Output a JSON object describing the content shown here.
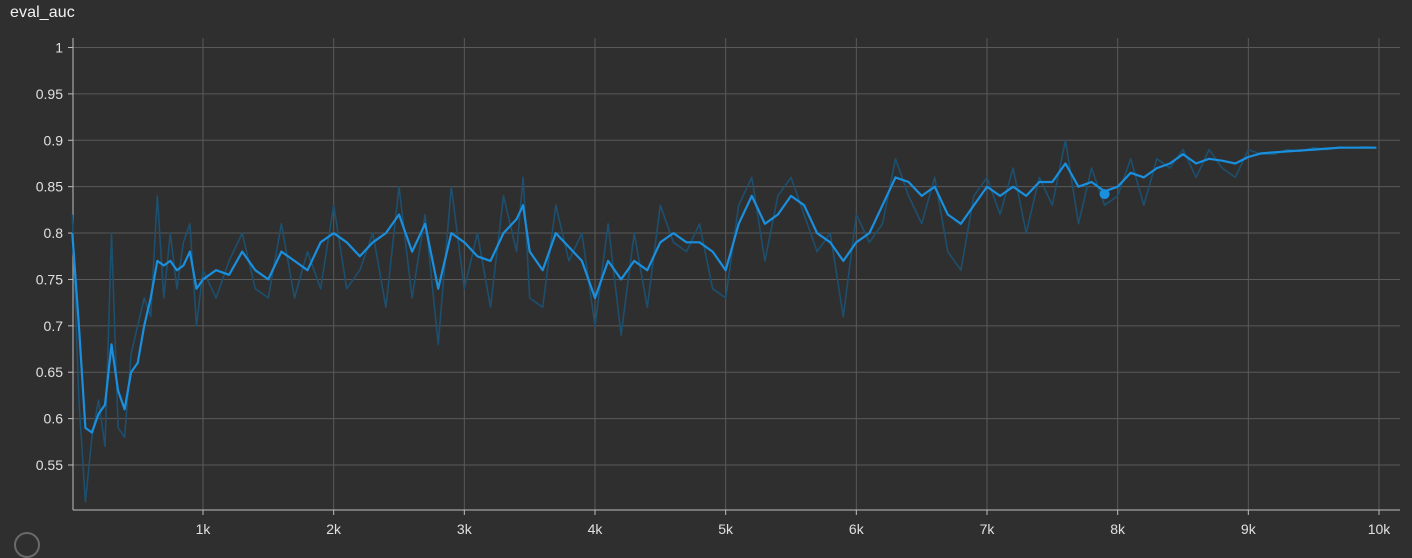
{
  "colors": {
    "background": "#2f2f2f",
    "grid": "#5a5a5a",
    "axis": "#bdbdbd",
    "smoothed_line": "#1a8fde",
    "raw_line": "#1d4f6e"
  },
  "panel": {
    "title": "eval_auc"
  },
  "chart_data": {
    "type": "line",
    "title": "eval_auc",
    "xlabel": "",
    "ylabel": "",
    "xlim": [
      0,
      10000
    ],
    "ylim": [
      0.5,
      1.005
    ],
    "grid": true,
    "x_ticks": [
      1000,
      2000,
      3000,
      4000,
      5000,
      6000,
      7000,
      8000,
      9000,
      10000
    ],
    "x_tick_labels": [
      "1k",
      "2k",
      "3k",
      "4k",
      "5k",
      "6k",
      "7k",
      "8k",
      "9k",
      "10k"
    ],
    "y_ticks": [
      0.55,
      0.6,
      0.65,
      0.7,
      0.75,
      0.8,
      0.85,
      0.9,
      0.95,
      1
    ],
    "y_tick_labels": [
      "0.55",
      "0.6",
      "0.65",
      "0.7",
      "0.75",
      "0.8",
      "0.85",
      "0.9",
      "0.95",
      "1"
    ],
    "series": [
      {
        "role": "smoothed",
        "x": [
          0,
          50,
          100,
          150,
          200,
          250,
          300,
          350,
          400,
          450,
          500,
          550,
          600,
          650,
          700,
          750,
          800,
          850,
          900,
          950,
          1000,
          1100,
          1200,
          1300,
          1400,
          1500,
          1600,
          1700,
          1800,
          1900,
          2000,
          2100,
          2200,
          2300,
          2400,
          2500,
          2600,
          2700,
          2800,
          2900,
          3000,
          3100,
          3200,
          3300,
          3400,
          3450,
          3500,
          3600,
          3700,
          3800,
          3900,
          4000,
          4100,
          4200,
          4300,
          4400,
          4500,
          4600,
          4700,
          4800,
          4900,
          5000,
          5100,
          5200,
          5300,
          5400,
          5500,
          5600,
          5700,
          5800,
          5900,
          6000,
          6100,
          6200,
          6300,
          6400,
          6500,
          6600,
          6700,
          6800,
          6900,
          7000,
          7100,
          7200,
          7300,
          7400,
          7500,
          7600,
          7700,
          7800,
          7900,
          8000,
          8100,
          8200,
          8300,
          8400,
          8500,
          8600,
          8700,
          8800,
          8900,
          9000,
          9100,
          9200,
          9300,
          9400,
          9500,
          9600,
          9700,
          9800,
          9900,
          9980
        ],
        "y": [
          0.8,
          0.7,
          0.59,
          0.585,
          0.605,
          0.615,
          0.68,
          0.63,
          0.61,
          0.65,
          0.66,
          0.7,
          0.73,
          0.77,
          0.765,
          0.77,
          0.76,
          0.765,
          0.78,
          0.74,
          0.75,
          0.76,
          0.755,
          0.78,
          0.76,
          0.75,
          0.78,
          0.77,
          0.76,
          0.79,
          0.8,
          0.79,
          0.775,
          0.79,
          0.8,
          0.82,
          0.78,
          0.81,
          0.74,
          0.8,
          0.79,
          0.775,
          0.77,
          0.8,
          0.815,
          0.83,
          0.78,
          0.76,
          0.8,
          0.785,
          0.77,
          0.73,
          0.77,
          0.75,
          0.77,
          0.76,
          0.79,
          0.8,
          0.79,
          0.79,
          0.78,
          0.76,
          0.81,
          0.84,
          0.81,
          0.82,
          0.84,
          0.83,
          0.8,
          0.79,
          0.77,
          0.79,
          0.8,
          0.83,
          0.86,
          0.855,
          0.84,
          0.85,
          0.82,
          0.81,
          0.83,
          0.85,
          0.84,
          0.85,
          0.84,
          0.855,
          0.855,
          0.875,
          0.85,
          0.855,
          0.845,
          0.85,
          0.865,
          0.86,
          0.87,
          0.875,
          0.885,
          0.875,
          0.88,
          0.878,
          0.875,
          0.882,
          0.886,
          0.887,
          0.888,
          0.889,
          0.89,
          0.891,
          0.892,
          0.892,
          0.892,
          0.892
        ],
        "marker_at": [
          7900,
          0.842
        ]
      },
      {
        "role": "raw",
        "x": [
          0,
          50,
          100,
          150,
          200,
          250,
          300,
          350,
          400,
          450,
          500,
          550,
          600,
          650,
          700,
          750,
          800,
          850,
          900,
          950,
          1000,
          1100,
          1200,
          1300,
          1400,
          1500,
          1600,
          1700,
          1800,
          1900,
          2000,
          2100,
          2200,
          2300,
          2400,
          2500,
          2600,
          2700,
          2800,
          2900,
          3000,
          3100,
          3200,
          3300,
          3400,
          3450,
          3500,
          3600,
          3700,
          3800,
          3900,
          4000,
          4100,
          4200,
          4300,
          4400,
          4500,
          4600,
          4700,
          4800,
          4900,
          5000,
          5100,
          5200,
          5300,
          5400,
          5500,
          5600,
          5700,
          5800,
          5900,
          6000,
          6100,
          6200,
          6300,
          6400,
          6500,
          6600,
          6700,
          6800,
          6900,
          7000,
          7100,
          7200,
          7300,
          7400,
          7500,
          7600,
          7700,
          7800,
          7900,
          8000,
          8100,
          8200,
          8300,
          8400,
          8500,
          8600,
          8700,
          8800,
          8900,
          9000,
          9100,
          9200,
          9300,
          9400,
          9500,
          9600,
          9700,
          9800,
          9900,
          9980
        ],
        "y": [
          0.82,
          0.62,
          0.51,
          0.58,
          0.62,
          0.57,
          0.8,
          0.59,
          0.58,
          0.67,
          0.7,
          0.73,
          0.71,
          0.84,
          0.73,
          0.8,
          0.74,
          0.79,
          0.81,
          0.7,
          0.76,
          0.73,
          0.77,
          0.8,
          0.74,
          0.73,
          0.81,
          0.73,
          0.78,
          0.74,
          0.83,
          0.74,
          0.76,
          0.8,
          0.72,
          0.85,
          0.73,
          0.82,
          0.68,
          0.85,
          0.74,
          0.8,
          0.72,
          0.84,
          0.78,
          0.86,
          0.73,
          0.72,
          0.83,
          0.77,
          0.8,
          0.7,
          0.81,
          0.69,
          0.8,
          0.72,
          0.83,
          0.79,
          0.78,
          0.81,
          0.74,
          0.73,
          0.83,
          0.86,
          0.77,
          0.84,
          0.86,
          0.82,
          0.78,
          0.8,
          0.71,
          0.82,
          0.79,
          0.81,
          0.88,
          0.84,
          0.81,
          0.86,
          0.78,
          0.76,
          0.84,
          0.86,
          0.82,
          0.87,
          0.8,
          0.86,
          0.83,
          0.9,
          0.81,
          0.87,
          0.83,
          0.84,
          0.88,
          0.83,
          0.88,
          0.87,
          0.89,
          0.86,
          0.89,
          0.87,
          0.86,
          0.89,
          0.885,
          0.885,
          0.89,
          0.888,
          0.892,
          0.89,
          0.893,
          0.892,
          0.893,
          0.892
        ]
      }
    ]
  }
}
